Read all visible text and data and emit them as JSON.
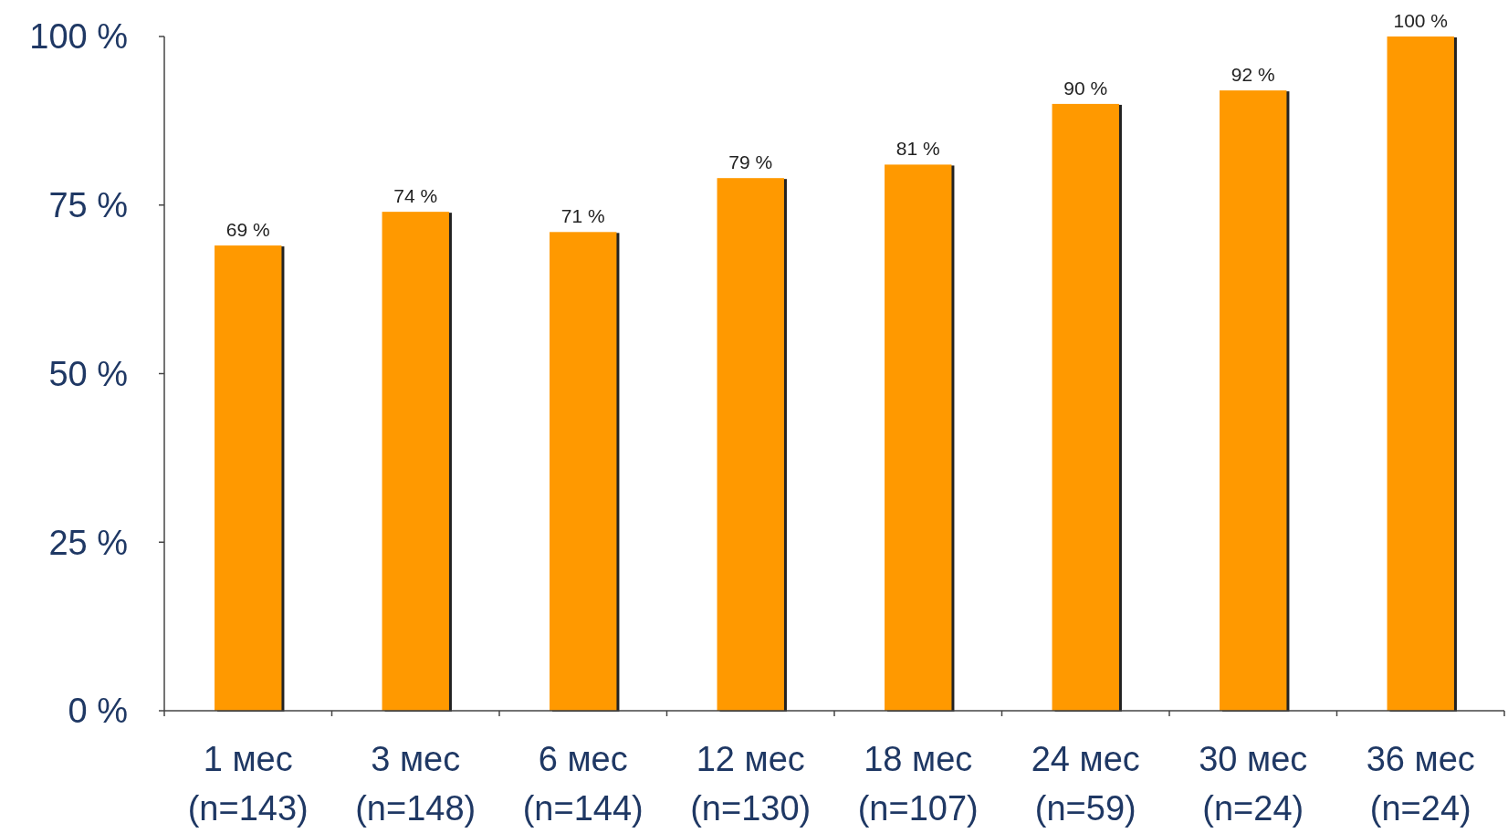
{
  "chart_data": {
    "type": "bar",
    "categories": [
      "1 мес\n(n=143)",
      "3 мес\n(n=148)",
      "6 мес\n(n=144)",
      "12 мес\n(n=130)",
      "18 мес\n(n=107)",
      "24 мес\n(n=59)",
      "30 мес\n(n=24)",
      "36 мес\n(n=24)"
    ],
    "values": [
      69,
      74,
      71,
      79,
      81,
      90,
      92,
      100
    ],
    "value_labels": [
      "69 %",
      "74 %",
      "71 %",
      "79 %",
      "81 %",
      "90 %",
      "92 %",
      "100 %"
    ],
    "color": "#ff9900",
    "ylim": [
      0,
      100
    ],
    "yticks": [
      {
        "value": 0,
        "label": "0 %"
      },
      {
        "value": 25,
        "label": "25 %"
      },
      {
        "value": 50,
        "label": "50 %"
      },
      {
        "value": 75,
        "label": "75 %"
      },
      {
        "value": 100,
        "label": "100 %"
      }
    ],
    "grid": false
  }
}
